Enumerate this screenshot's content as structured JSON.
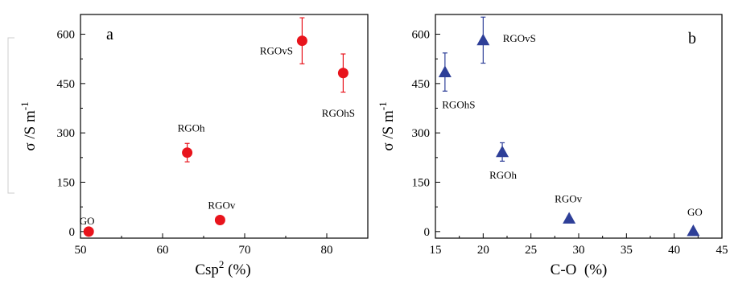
{
  "chart_data": [
    {
      "type": "scatter",
      "panel_label": "a",
      "xlabel": "Csp",
      "xlabel_sup": "2",
      "xlabel_suffix": " (%)",
      "ylabel": "σ /S m",
      "ylabel_sup": "-1",
      "xlim": [
        50,
        85
      ],
      "ylim": [
        -20,
        660
      ],
      "xticks": [
        50,
        60,
        70,
        80
      ],
      "yticks": [
        0,
        150,
        300,
        450,
        600
      ],
      "grid": false,
      "marker": "circle",
      "color": "#e8141c",
      "points": [
        {
          "label": "GO",
          "x": 51,
          "y": 0,
          "err": 0
        },
        {
          "label": "RGOh",
          "x": 63,
          "y": 240,
          "err": 28
        },
        {
          "label": "RGOv",
          "x": 67,
          "y": 35,
          "err": 0
        },
        {
          "label": "RGOvS",
          "x": 77,
          "y": 580,
          "err": 70
        },
        {
          "label": "RGOhS",
          "x": 82,
          "y": 482,
          "err": 58
        }
      ]
    },
    {
      "type": "scatter",
      "panel_label": "b",
      "xlabel": "C-O  (%)",
      "ylabel": "σ /S m",
      "ylabel_sup": "-1",
      "xlim": [
        15,
        45
      ],
      "ylim": [
        -20,
        660
      ],
      "xticks": [
        15,
        20,
        25,
        30,
        35,
        40,
        45
      ],
      "yticks": [
        0,
        150,
        300,
        450,
        600
      ],
      "grid": false,
      "marker": "triangle",
      "color": "#2e3f98",
      "points": [
        {
          "label": "RGOhS",
          "x": 16,
          "y": 485,
          "err": 58
        },
        {
          "label": "RGOvS",
          "x": 20,
          "y": 582,
          "err": 70
        },
        {
          "label": "RGOh",
          "x": 22,
          "y": 242,
          "err": 28
        },
        {
          "label": "RGOv",
          "x": 29,
          "y": 40,
          "err": 0
        },
        {
          "label": "GO",
          "x": 42,
          "y": 2,
          "err": 0
        }
      ]
    }
  ]
}
